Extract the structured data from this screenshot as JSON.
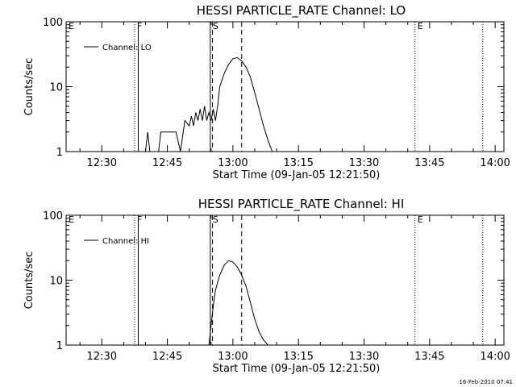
{
  "footer": {
    "timestamp": "16-Feb-2010 07:41"
  },
  "chart_data": [
    {
      "type": "line",
      "title": "HESSI PARTICLE_RATE Channel: LO",
      "xlabel": "Start Time (09-Jan-05 12:21:50)",
      "ylabel": "Counts/sec",
      "y_scale": "log",
      "ylim": [
        1,
        100
      ],
      "y_ticks": [
        "1",
        "10",
        "100"
      ],
      "xlim": [
        "12:21:50",
        "14:02:00"
      ],
      "x_ticks": [
        "12:30",
        "12:45",
        "13:00",
        "13:15",
        "13:30",
        "13:45",
        "14:00"
      ],
      "legend": "top-left",
      "series": [
        {
          "name": "Channel: LO",
          "x": [
            "12:40:00",
            "12:40:30",
            "12:41:00",
            "12:43:00",
            "12:43:30",
            "12:44:00",
            "12:45:00",
            "12:46:00",
            "12:47:00",
            "12:48:00",
            "12:49:00",
            "12:50:00",
            "12:50:30",
            "12:51:00",
            "12:51:30",
            "12:52:00",
            "12:52:30",
            "12:53:00",
            "12:53:30",
            "12:54:00",
            "12:54:30",
            "12:55:00",
            "12:55:30",
            "12:56:00",
            "12:56:30",
            "12:57:00",
            "12:58:00",
            "12:59:00",
            "13:00:00",
            "13:01:00",
            "13:02:00",
            "13:03:00",
            "13:04:00",
            "13:05:00",
            "13:06:00",
            "13:07:00",
            "13:08:00",
            "13:09:00"
          ],
          "y": [
            1,
            2,
            1,
            1,
            2,
            2,
            2,
            2,
            2,
            1,
            3,
            2.5,
            3.5,
            2.5,
            4,
            3,
            4.5,
            3,
            5,
            3,
            4,
            3,
            4.5,
            3,
            5,
            10,
            16,
            22,
            27,
            28,
            25,
            20,
            14,
            8,
            4.5,
            2.5,
            1.5,
            1
          ]
        }
      ],
      "markers": [
        {
          "label": "E",
          "time": "12:21:50",
          "style": "dotted"
        },
        {
          "label": "F",
          "time": "12:37:30",
          "style": "dotted"
        },
        {
          "label": "F",
          "time": "12:38:20",
          "style": "solid"
        },
        {
          "label": "S",
          "time": "12:54:50",
          "style": "solid"
        },
        {
          "label": "S",
          "time": "12:55:20",
          "style": "dashed"
        },
        {
          "label": "",
          "time": "13:02:00",
          "style": "dashed"
        },
        {
          "label": "E",
          "time": "13:41:40",
          "style": "dotted"
        },
        {
          "label": "",
          "time": "13:57:10",
          "style": "dotted"
        }
      ]
    },
    {
      "type": "line",
      "title": "HESSI PARTICLE_RATE Channel: HI",
      "xlabel": "Start Time (09-Jan-05 12:21:50)",
      "ylabel": "Counts/sec",
      "y_scale": "log",
      "ylim": [
        1,
        100
      ],
      "y_ticks": [
        "1",
        "10",
        "100"
      ],
      "xlim": [
        "12:21:50",
        "14:02:00"
      ],
      "x_ticks": [
        "12:30",
        "12:45",
        "13:00",
        "13:15",
        "13:30",
        "13:45",
        "14:00"
      ],
      "legend": "top-left",
      "series": [
        {
          "name": "Channel: HI",
          "x": [
            "12:54:30",
            "12:55:00",
            "12:55:30",
            "12:56:00",
            "12:57:00",
            "12:58:00",
            "12:59:00",
            "13:00:00",
            "13:01:00",
            "13:02:00",
            "13:03:00",
            "13:04:00",
            "13:05:00",
            "13:06:00",
            "13:07:00",
            "13:08:00"
          ],
          "y": [
            1,
            2,
            4,
            7,
            12,
            17,
            20,
            19,
            16,
            12,
            8,
            4.5,
            2.5,
            1.6,
            1.2,
            1
          ]
        }
      ],
      "markers": [
        {
          "label": "E",
          "time": "12:21:50",
          "style": "dotted"
        },
        {
          "label": "F",
          "time": "12:37:30",
          "style": "dotted"
        },
        {
          "label": "F",
          "time": "12:38:20",
          "style": "solid"
        },
        {
          "label": "S",
          "time": "12:54:50",
          "style": "solid"
        },
        {
          "label": "S",
          "time": "12:55:20",
          "style": "dashed"
        },
        {
          "label": "",
          "time": "13:02:00",
          "style": "dashed"
        },
        {
          "label": "E",
          "time": "13:41:40",
          "style": "dotted"
        },
        {
          "label": "",
          "time": "13:57:10",
          "style": "dotted"
        }
      ]
    }
  ]
}
